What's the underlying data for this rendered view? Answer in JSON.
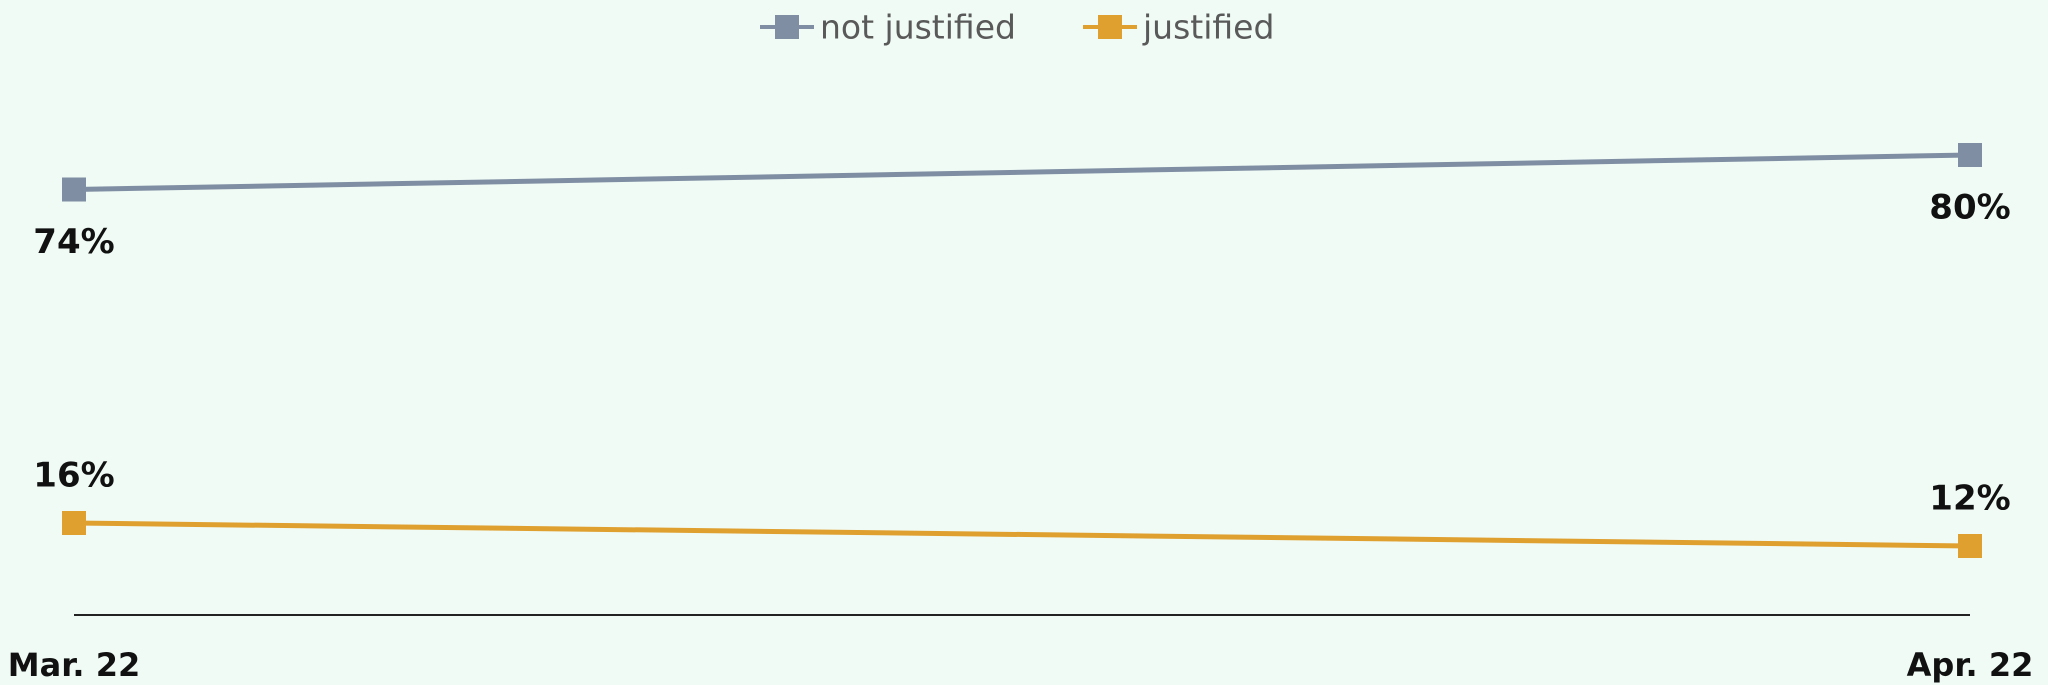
{
  "chart_data": {
    "type": "line",
    "categories": [
      "Mar. 22",
      "Apr. 22"
    ],
    "series": [
      {
        "name": "not justified",
        "color": "#7f8ea3",
        "values": [
          74,
          80
        ],
        "value_labels": [
          "74%",
          "80%"
        ]
      },
      {
        "name": "justified",
        "color": "#dfa030",
        "values": [
          16,
          12
        ],
        "value_labels": [
          "16%",
          "12%"
        ]
      }
    ],
    "ylim": [
      0,
      100
    ],
    "legend": "top"
  }
}
